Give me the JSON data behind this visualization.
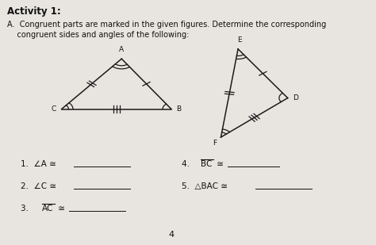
{
  "bg_color": "#e8e5e0",
  "title_text": "Activity 1:",
  "header_line1": "A.  Congruent parts are marked in the given figures. Determine the corresponding",
  "header_line2": "    congruent sides and angles of the following:",
  "triangle1": {
    "A": [
      0.355,
      0.76
    ],
    "B": [
      0.5,
      0.555
    ],
    "C": [
      0.18,
      0.555
    ]
  },
  "triangle2": {
    "E": [
      0.695,
      0.8
    ],
    "D": [
      0.84,
      0.6
    ],
    "F": [
      0.645,
      0.44
    ]
  },
  "page_number": "4",
  "line_color": "#1a1a1a",
  "text_color": "#111111"
}
